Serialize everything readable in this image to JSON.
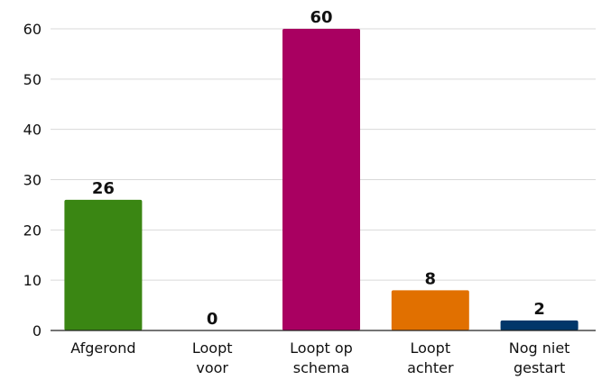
{
  "chart_data": {
    "type": "bar",
    "title": "",
    "xlabel": "",
    "ylabel": "",
    "categories": [
      "Afgerond",
      "Loopt voor",
      "Loopt op schema",
      "Loopt achter",
      "Nog niet gestart"
    ],
    "category_lines": [
      [
        "Afgerond"
      ],
      [
        "Loopt",
        "voor"
      ],
      [
        "Loopt op",
        "schema"
      ],
      [
        "Loopt",
        "achter"
      ],
      [
        "Nog niet",
        "gestart"
      ]
    ],
    "values": [
      26,
      0,
      60,
      8,
      2
    ],
    "data_labels": [
      "26",
      "0",
      "60",
      "8",
      "2"
    ],
    "colors": [
      "#3a8613",
      "#3a8613",
      "#a90061",
      "#e17000",
      "#01376a"
    ],
    "ylim": [
      0,
      60
    ],
    "yticks": [
      0,
      10,
      20,
      30,
      40,
      50,
      60
    ],
    "grid": true,
    "legend": "none"
  }
}
